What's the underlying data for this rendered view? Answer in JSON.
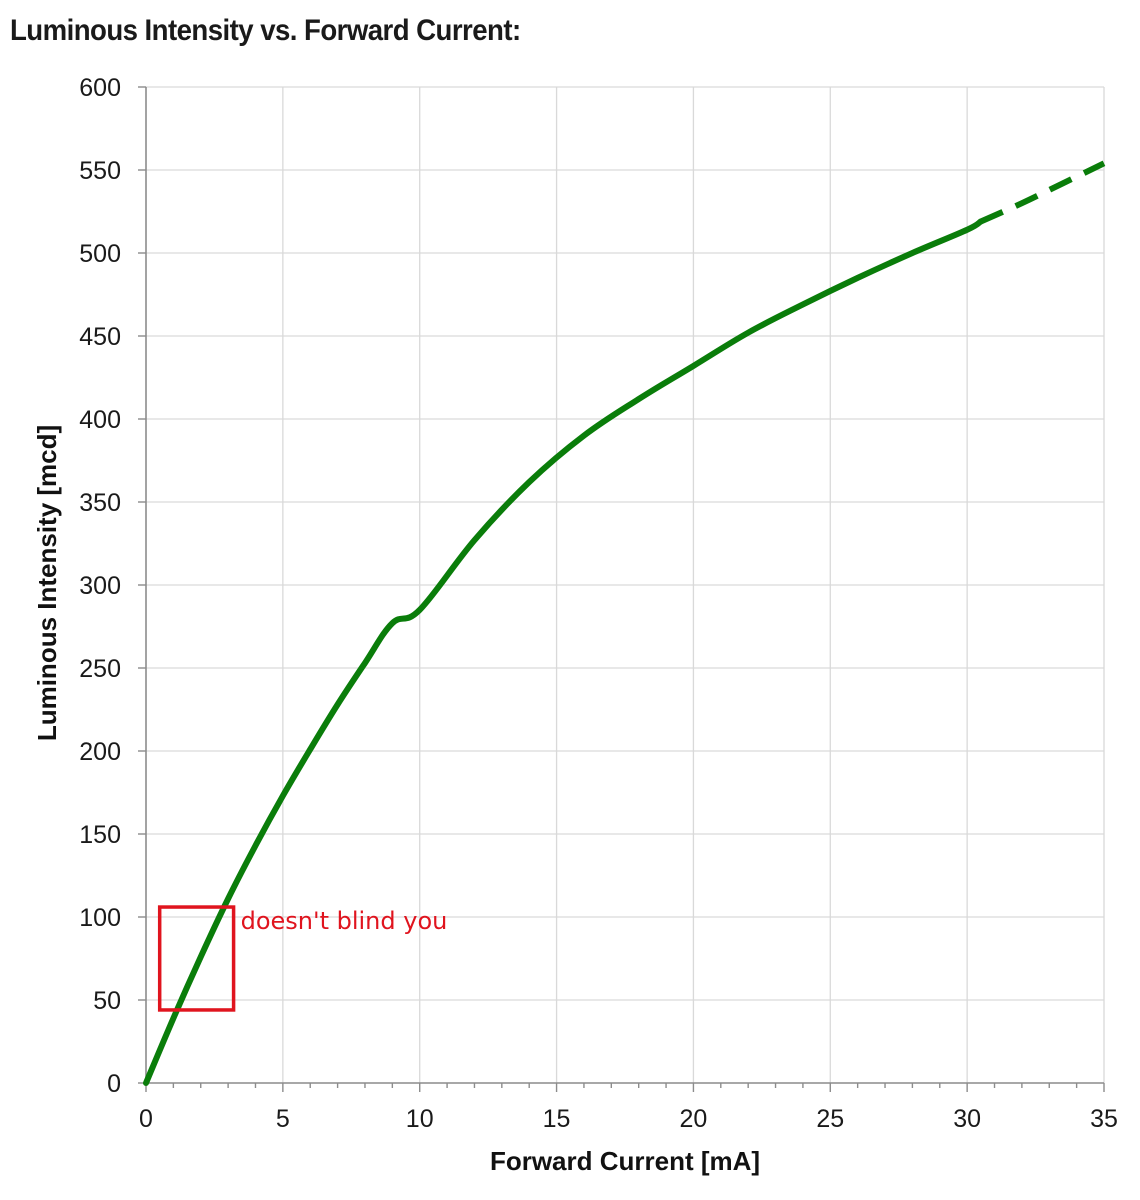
{
  "title": "Luminous Intensity vs. Forward Current:",
  "colors": {
    "series": "#0a7d0a",
    "grid": "#d9d9d9",
    "axis": "#8c8c8c",
    "annotation": "#e0141e"
  },
  "annotation": {
    "text": "doesn't blind you",
    "x_range": [
      0.5,
      3.2
    ],
    "y_range": [
      44,
      106
    ]
  },
  "chart_data": {
    "type": "line",
    "title": "Luminous Intensity vs. Forward Current:",
    "xlabel": "Forward Current [mA]",
    "ylabel": "Luminous Intensity [mcd]",
    "xlim": [
      0,
      35
    ],
    "ylim": [
      0,
      600
    ],
    "x_ticks": [
      0,
      5,
      10,
      15,
      20,
      25,
      30,
      35
    ],
    "y_ticks": [
      0,
      50,
      100,
      150,
      200,
      250,
      300,
      350,
      400,
      450,
      500,
      550,
      600
    ],
    "grid": true,
    "series": [
      {
        "style": "solid",
        "x": [
          0,
          1,
          2,
          3,
          4,
          5,
          6,
          7,
          8,
          9,
          10,
          12,
          14,
          16,
          18,
          20,
          22,
          24,
          26,
          28,
          30,
          30.5
        ],
        "y": [
          0,
          39,
          76,
          111,
          143,
          173,
          201,
          228,
          253,
          277,
          285,
          327,
          362,
          390,
          412,
          432,
          452,
          469,
          485,
          500,
          514,
          519
        ]
      },
      {
        "style": "dashed",
        "x": [
          30.5,
          32,
          33.5,
          35
        ],
        "y": [
          519,
          530,
          542,
          554
        ]
      }
    ]
  }
}
